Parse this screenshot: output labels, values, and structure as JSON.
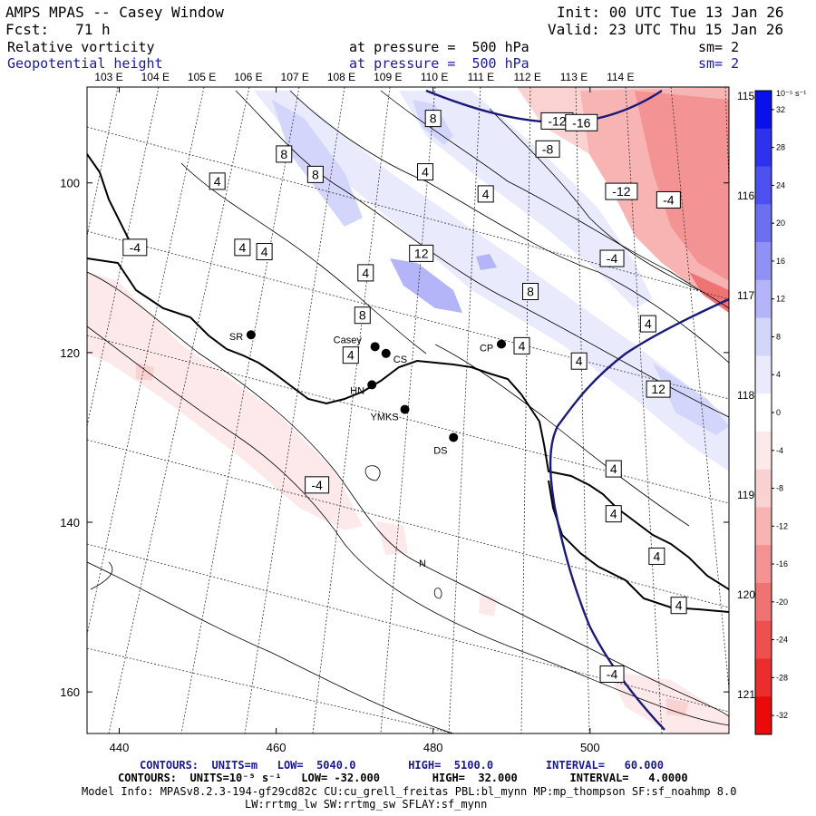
{
  "header": {
    "title": "AMPS MPAS -- Casey Window",
    "init": "Init: 00 UTC Tue 13 Jan 26",
    "fcst": "Fcst:   71 h",
    "valid": "Valid: 23 UTC Thu 15 Jan 26",
    "field1": "Relative vorticity",
    "field1_level": "at pressure =  500 hPa",
    "field1_sm": "sm= 2",
    "field2": "Geopotential height",
    "field2_level": "at pressure =  500 hPa",
    "field2_sm": "sm= 2"
  },
  "map": {
    "top_lon_labels": [
      "103 E",
      "104 E",
      "105 E",
      "106 E",
      "107 E",
      "108 E",
      "109 E",
      "110 E",
      "111 E",
      "112 E",
      "113 E",
      "114 E"
    ],
    "right_lon_labels": [
      "115 E",
      "116 E",
      "117 E",
      "118 E",
      "119 E",
      "120 E",
      "121 E"
    ],
    "y_ticks": [
      "100",
      "120",
      "140",
      "160"
    ],
    "x_ticks": [
      "440",
      "460",
      "480",
      "500"
    ],
    "stations": [
      {
        "name": "SR",
        "x": 456.8,
        "y": 117.9
      },
      {
        "name": "Casey",
        "x": 472.6,
        "y": 119.3
      },
      {
        "name": "CS",
        "x": 474.0,
        "y": 120.1
      },
      {
        "name": "CP",
        "x": 488.7,
        "y": 119.0
      },
      {
        "name": "HN",
        "x": 472.2,
        "y": 123.8
      },
      {
        "name": "YMKS",
        "x": 476.4,
        "y": 126.7
      },
      {
        "name": "DS",
        "x": 482.6,
        "y": 130.0
      }
    ],
    "north_label": "N",
    "contour_labels": [
      {
        "t": "-12",
        "x": 495.8,
        "y": 92.7
      },
      {
        "t": "-16",
        "x": 498.9,
        "y": 92.9
      },
      {
        "t": "-8",
        "x": 494.6,
        "y": 96.0
      },
      {
        "t": "-12",
        "x": 504.0,
        "y": 101.0
      },
      {
        "t": "-4",
        "x": 510.0,
        "y": 102.0
      },
      {
        "t": "-4",
        "x": 502.8,
        "y": 108.9
      },
      {
        "t": "8",
        "x": 480.0,
        "y": 92.4
      },
      {
        "t": "8",
        "x": 461.0,
        "y": 96.6
      },
      {
        "t": "8",
        "x": 465.0,
        "y": 99.0
      },
      {
        "t": "4",
        "x": 479.0,
        "y": 98.7
      },
      {
        "t": "4",
        "x": 486.7,
        "y": 101.3
      },
      {
        "t": "4",
        "x": 452.5,
        "y": 99.8
      },
      {
        "t": "12",
        "x": 478.5,
        "y": 108.3
      },
      {
        "t": "4",
        "x": 455.7,
        "y": 107.6
      },
      {
        "t": "4",
        "x": 458.5,
        "y": 108.1
      },
      {
        "t": "4",
        "x": 471.4,
        "y": 110.6
      },
      {
        "t": "-4",
        "x": 442.0,
        "y": 107.6
      },
      {
        "t": "8",
        "x": 471.0,
        "y": 115.6
      },
      {
        "t": "8",
        "x": 492.4,
        "y": 112.8
      },
      {
        "t": "4",
        "x": 491.3,
        "y": 119.2
      },
      {
        "t": "4",
        "x": 469.5,
        "y": 120.3
      },
      {
        "t": "4",
        "x": 498.6,
        "y": 121.0
      },
      {
        "t": "4",
        "x": 507.4,
        "y": 116.6
      },
      {
        "t": "12",
        "x": 508.7,
        "y": 124.3
      },
      {
        "t": "4",
        "x": 503.0,
        "y": 133.7
      },
      {
        "t": "-4",
        "x": 465.2,
        "y": 135.6
      },
      {
        "t": "4",
        "x": 503.0,
        "y": 139.0
      },
      {
        "t": "4",
        "x": 508.5,
        "y": 144.0
      },
      {
        "t": "4",
        "x": 511.3,
        "y": 149.8
      },
      {
        "t": "-4",
        "x": 502.8,
        "y": 157.9
      }
    ]
  },
  "colorbar": {
    "unit": "10⁻⁵ s⁻¹",
    "levels": [
      "32",
      "28",
      "24",
      "20",
      "16",
      "12",
      "8",
      "4",
      "0",
      "-4",
      "-8",
      "-12",
      "-16",
      "-20",
      "-24",
      "-28",
      "-32"
    ],
    "colors": [
      "#0a10ea",
      "#2d33ec",
      "#4b50ee",
      "#6b6ff0",
      "#8f92f4",
      "#b3b5f8",
      "#d4d5fb",
      "#eaeafd",
      "#ffffff",
      "#fde9e9",
      "#fbd2d2",
      "#f8b3b3",
      "#f49393",
      "#f07373",
      "#ee5050",
      "#ec2d2d",
      "#ea0a0a"
    ]
  },
  "footer": {
    "contours1": "CONTOURS:  UNITS=m   LOW=  5040.0        HIGH=  5100.0        INTERVAL=   60.000",
    "contours2": "CONTOURS:  UNITS=10⁻⁵ s⁻¹   LOW= -32.000        HIGH=  32.000        INTERVAL=   4.0000",
    "model_info": "Model Info: MPASv8.2.3-194-gf29cd82c CU:cu_grell_freitas PBL:bl_mynn MP:mp_thompson SF:sf_noahmp 8.0",
    "model_info2": "LW:rrtmg_lw SW:rrtmg_sw SFLAY:sf_mynn"
  }
}
